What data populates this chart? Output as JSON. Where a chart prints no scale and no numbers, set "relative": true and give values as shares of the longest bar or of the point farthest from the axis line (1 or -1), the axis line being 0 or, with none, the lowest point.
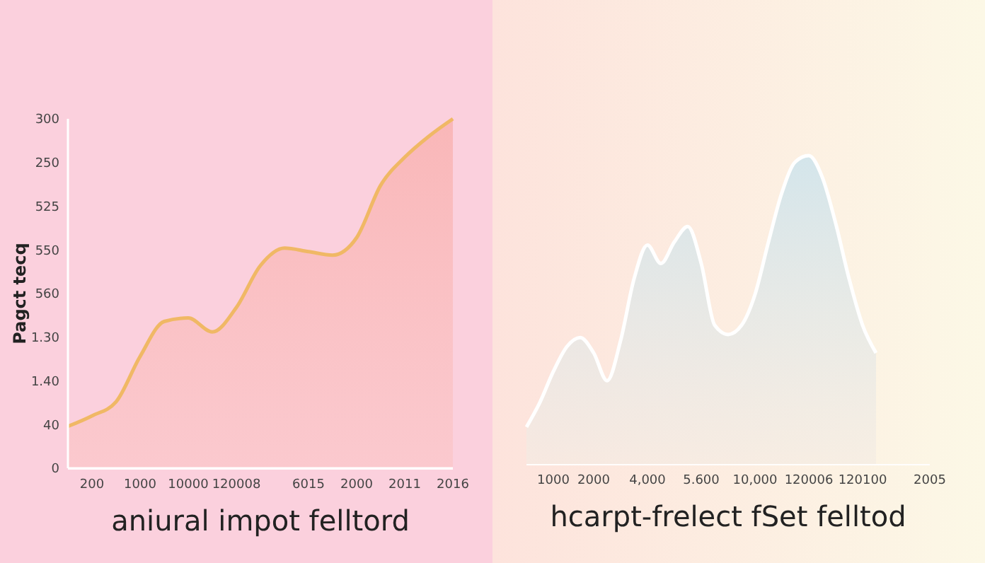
{
  "chart_data": [
    {
      "type": "area",
      "xlabel": "aniural impot felltord",
      "ylabel": "Pagct tecq",
      "relative": true,
      "categories": [
        null,
        "200",
        null,
        "1000",
        null,
        "10000",
        null,
        "120008",
        null,
        null,
        "6015",
        null,
        "2000",
        null,
        "2011",
        null,
        "2016"
      ],
      "annotations": [
        "300",
        "250",
        "525",
        "550",
        "560",
        "1.30",
        "1.40",
        "40",
        "0"
      ],
      "series": [
        {
          "color": "#f0b865",
          "values": [
            0.12,
            0.15,
            0.19,
            0.32,
            0.42,
            0.43,
            0.39,
            0.46,
            0.58,
            0.63,
            0.62,
            0.61,
            0.66,
            0.81,
            0.89,
            0.95,
            1.0
          ]
        }
      ]
    },
    {
      "type": "area",
      "xlabel": "hcarpt-frelect fSet felltod",
      "relative": true,
      "categories": [
        null,
        null,
        "1000",
        null,
        null,
        "2000",
        null,
        null,
        null,
        "4,000",
        null,
        null,
        null,
        "5.600",
        null,
        null,
        null,
        "10,000",
        null,
        null,
        null,
        "120006",
        null,
        null,
        null,
        "120100",
        null,
        null,
        null,
        null,
        "2005"
      ],
      "series": [
        {
          "color": "#ffffff",
          "values": [
            0.12,
            0.2,
            0.3,
            0.38,
            0.41,
            0.36,
            0.27,
            0.4,
            0.6,
            0.71,
            0.65,
            0.72,
            0.77,
            0.65,
            0.45,
            0.42,
            0.45,
            0.55,
            0.72,
            0.88,
            0.98,
            1.0,
            0.93,
            0.78,
            0.6,
            0.45,
            0.36,
            null,
            null,
            null,
            null
          ]
        }
      ]
    }
  ]
}
